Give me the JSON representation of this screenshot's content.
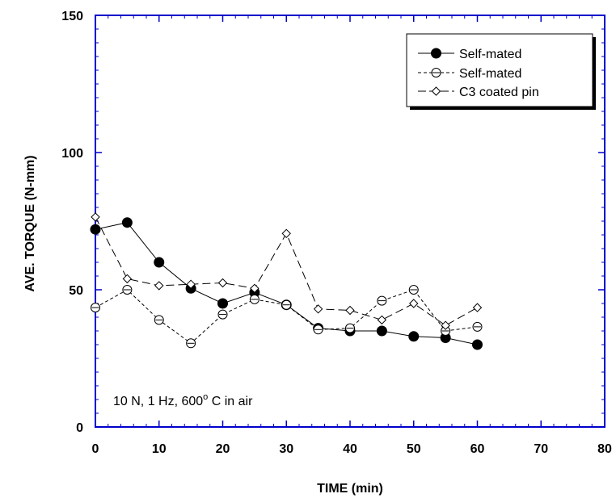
{
  "chart_data": {
    "type": "line",
    "xlabel": "TIME (min)",
    "ylabel": "AVE. TORQUE (N-mm)",
    "xlim": [
      0,
      80
    ],
    "ylim": [
      0,
      150
    ],
    "x_ticks": [
      0,
      10,
      20,
      30,
      40,
      50,
      60,
      70,
      80
    ],
    "y_ticks": [
      0,
      50,
      100,
      150
    ],
    "x_tick_labels": [
      "0",
      "10",
      "20",
      "30",
      "40",
      "50",
      "60",
      "70",
      "80"
    ],
    "y_tick_labels": [
      "0",
      "50",
      "100",
      "150"
    ],
    "grid": false,
    "legend_position": "top-right",
    "frame_color": "#0000cc",
    "annotation": {
      "text": "10 N, 1 Hz, 600",
      "superscript": "o",
      "suffix": " C in air"
    },
    "series": [
      {
        "name": "Self-mated",
        "marker": "filled-circle",
        "line": "solid",
        "x": [
          0,
          5,
          10,
          15,
          20,
          25,
          30,
          35,
          40,
          45,
          50,
          55,
          60
        ],
        "y": [
          72,
          74.5,
          60,
          50.5,
          45,
          49,
          44.5,
          36,
          35,
          35,
          33,
          32.5,
          30
        ]
      },
      {
        "name": "Self-mated",
        "marker": "open-circle-dash",
        "line": "short-dash",
        "x": [
          0,
          5,
          10,
          15,
          20,
          25,
          30,
          35,
          40,
          45,
          50,
          55,
          60
        ],
        "y": [
          43.5,
          50,
          39,
          30.5,
          41,
          46.5,
          44.5,
          35.5,
          36,
          46,
          50,
          35,
          36.5
        ]
      },
      {
        "name": "C3 coated pin",
        "marker": "open-diamond",
        "line": "long-dash",
        "x": [
          0,
          5,
          10,
          15,
          20,
          25,
          30,
          35,
          40,
          45,
          50,
          55,
          60
        ],
        "y": [
          76.5,
          54,
          51.5,
          52,
          52.5,
          50.5,
          70.5,
          43,
          42.5,
          39,
          45,
          37,
          43.5
        ]
      }
    ]
  }
}
